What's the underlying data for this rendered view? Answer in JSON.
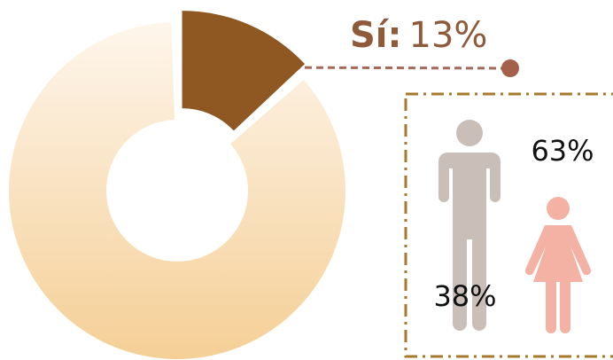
{
  "chart_data": [
    {
      "type": "pie",
      "donut": true,
      "categories": [
        "Sí:",
        null
      ],
      "values": [
        13,
        87
      ],
      "value_labels": [
        "13%",
        null
      ],
      "colors": [
        "#8f5722",
        "#f6d4a2"
      ]
    },
    {
      "type": "pictogram",
      "values": [
        63,
        38
      ],
      "value_labels": [
        "63%",
        "38%"
      ],
      "colors": [
        "#c9bfb8",
        "#f3b2a4"
      ]
    }
  ]
}
